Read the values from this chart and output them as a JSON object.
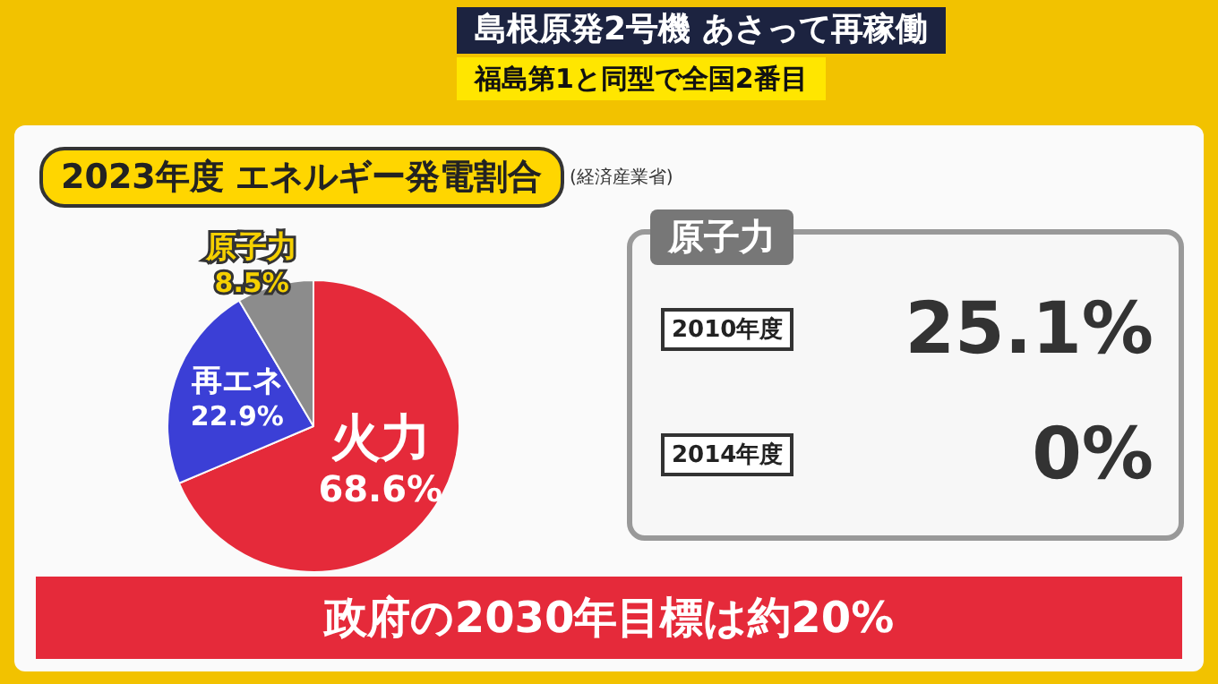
{
  "chart_data": [
    {
      "type": "pie",
      "title": "2023年度 エネルギー発電割合",
      "annotations": [
        "島根原発2号機 あさって再稼働",
        "福島第1と同型で全国2番目",
        "(経済産業省)",
        "政府の2030年目標は約20%"
      ],
      "categories": [
        "火力",
        "再エネ",
        "原子力"
      ],
      "values": [
        68.6,
        22.9,
        8.5
      ],
      "colors": [
        "#e52a3a",
        "#3b3fd6",
        "#8c8c8c"
      ],
      "value_labels": [
        "68.6%",
        "22.9%",
        "8.5%"
      ]
    },
    {
      "type": "other",
      "title": "原子力",
      "categories": [
        "2010年度",
        "2014年度"
      ],
      "value_labels": [
        "25.1%",
        "0%"
      ]
    }
  ]
}
